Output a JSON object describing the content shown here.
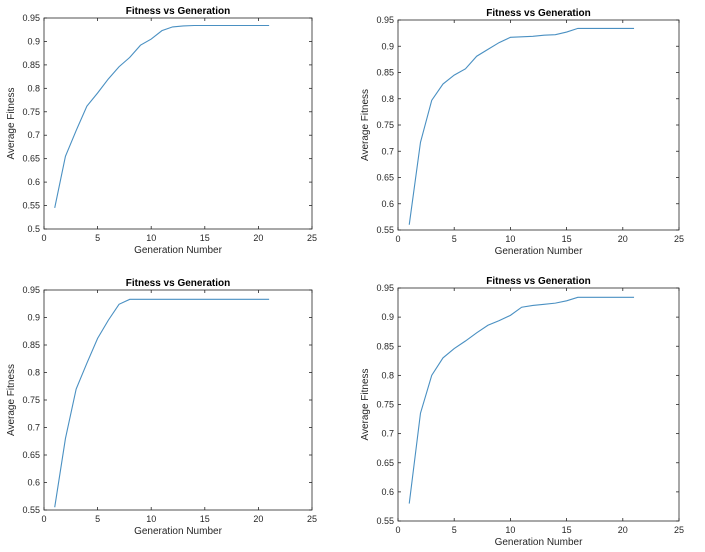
{
  "chart_data": [
    {
      "type": "line",
      "title": "Fitness vs Generation",
      "xlabel": "Generation Number",
      "ylabel": "Average Fitness",
      "xlim": [
        0,
        25
      ],
      "ylim": [
        0.5,
        0.95
      ],
      "xticks": [
        0,
        5,
        10,
        15,
        20,
        25
      ],
      "yticks": [
        0.5,
        0.55,
        0.6,
        0.65,
        0.7,
        0.75,
        0.8,
        0.85,
        0.9,
        0.95
      ],
      "grid": false,
      "line_color": "#4a90c2",
      "x": [
        1,
        2,
        3,
        4,
        5,
        6,
        7,
        8,
        9,
        10,
        11,
        12,
        13,
        14,
        15,
        16,
        17,
        18,
        19,
        20,
        21
      ],
      "y": [
        0.545,
        0.655,
        0.71,
        0.762,
        0.79,
        0.82,
        0.846,
        0.866,
        0.892,
        0.905,
        0.923,
        0.931,
        0.933,
        0.934,
        0.934,
        0.934,
        0.934,
        0.934,
        0.934,
        0.934,
        0.934
      ]
    },
    {
      "type": "line",
      "title": "Fitness vs Generation",
      "xlabel": "Generation Number",
      "ylabel": "Average Fitness",
      "xlim": [
        0,
        25
      ],
      "ylim": [
        0.55,
        0.95
      ],
      "xticks": [
        0,
        5,
        10,
        15,
        20,
        25
      ],
      "yticks": [
        0.55,
        0.6,
        0.65,
        0.7,
        0.75,
        0.8,
        0.85,
        0.9,
        0.95
      ],
      "grid": false,
      "line_color": "#4a90c2",
      "x": [
        1,
        2,
        3,
        4,
        5,
        6,
        7,
        8,
        9,
        10,
        11,
        12,
        13,
        14,
        15,
        16,
        17,
        18,
        19,
        20,
        21
      ],
      "y": [
        0.56,
        0.717,
        0.797,
        0.828,
        0.845,
        0.857,
        0.881,
        0.894,
        0.907,
        0.917,
        0.918,
        0.919,
        0.921,
        0.922,
        0.927,
        0.934,
        0.934,
        0.934,
        0.934,
        0.934,
        0.934
      ]
    },
    {
      "type": "line",
      "title": "Fitness vs Generation",
      "xlabel": "Generation Number",
      "ylabel": "Average Fitness",
      "xlim": [
        0,
        25
      ],
      "ylim": [
        0.55,
        0.95
      ],
      "xticks": [
        0,
        5,
        10,
        15,
        20,
        25
      ],
      "yticks": [
        0.55,
        0.6,
        0.65,
        0.7,
        0.75,
        0.8,
        0.85,
        0.9,
        0.95
      ],
      "grid": false,
      "line_color": "#4a90c2",
      "x": [
        1,
        2,
        3,
        4,
        5,
        6,
        7,
        8,
        9,
        10,
        11,
        12,
        13,
        14,
        15,
        16,
        17,
        18,
        19,
        20,
        21
      ],
      "y": [
        0.555,
        0.68,
        0.77,
        0.817,
        0.862,
        0.895,
        0.924,
        0.933,
        0.933,
        0.933,
        0.933,
        0.933,
        0.933,
        0.933,
        0.933,
        0.933,
        0.933,
        0.933,
        0.933,
        0.933,
        0.933
      ]
    },
    {
      "type": "line",
      "title": "Fitness vs Generation",
      "xlabel": "Generation Number",
      "ylabel": "Average Fitness",
      "xlim": [
        0,
        25
      ],
      "ylim": [
        0.55,
        0.95
      ],
      "xticks": [
        0,
        5,
        10,
        15,
        20,
        25
      ],
      "yticks": [
        0.55,
        0.6,
        0.65,
        0.7,
        0.75,
        0.8,
        0.85,
        0.9,
        0.95
      ],
      "grid": false,
      "line_color": "#4a90c2",
      "x": [
        1,
        2,
        3,
        4,
        5,
        6,
        7,
        8,
        9,
        10,
        11,
        12,
        13,
        14,
        15,
        16,
        17,
        18,
        19,
        20,
        21
      ],
      "y": [
        0.58,
        0.735,
        0.8,
        0.83,
        0.846,
        0.859,
        0.873,
        0.886,
        0.894,
        0.903,
        0.917,
        0.92,
        0.922,
        0.924,
        0.928,
        0.934,
        0.934,
        0.934,
        0.934,
        0.934,
        0.934
      ]
    }
  ]
}
